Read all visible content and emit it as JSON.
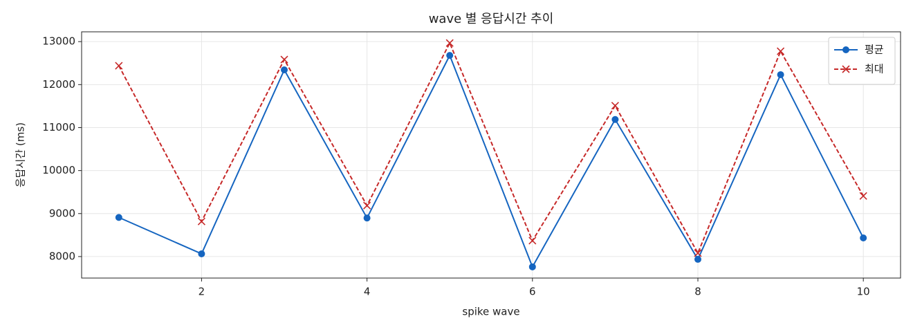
{
  "chart_data": {
    "type": "line",
    "title": "wave 별 응답시간 추이",
    "x_label": "spike wave",
    "y_label": "응답시간 (ms)",
    "x": [
      1,
      2,
      3,
      4,
      5,
      6,
      7,
      8,
      9,
      10
    ],
    "series": [
      {
        "name": "평균",
        "color": "#1565c0",
        "linestyle": "solid",
        "marker": "circle",
        "values": [
          8910,
          8064,
          12343,
          8897,
          12679,
          7760,
          11189,
          7936,
          12231,
          8433
        ]
      },
      {
        "name": "최대",
        "color": "#c62828",
        "linestyle": "dashed",
        "marker": "x",
        "values": [
          12439,
          8817,
          12583,
          9186,
          12968,
          8369,
          11510,
          8080,
          12776,
          9410
        ]
      }
    ],
    "xlim": [
      0.55,
      10.45
    ],
    "xticks": [
      2,
      4,
      6,
      8,
      10
    ],
    "ylim": [
      7500,
      13228
    ],
    "yticks": [
      8000,
      9000,
      10000,
      11000,
      12000,
      13000
    ],
    "grid": true,
    "legend": "upper-right"
  }
}
